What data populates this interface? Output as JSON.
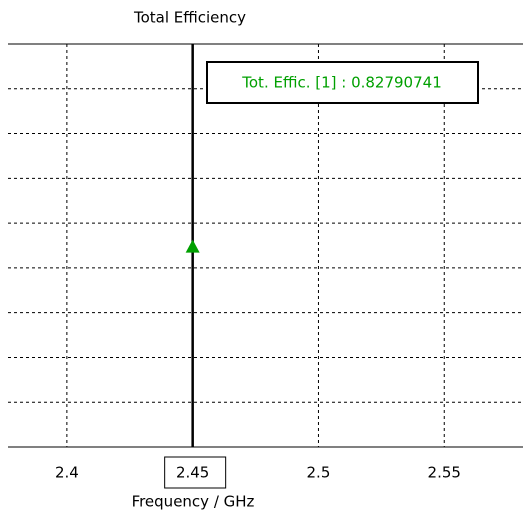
{
  "chart_data": {
    "type": "marker",
    "title": "Total Efficiency",
    "xlabel": "Frequency / GHz",
    "xlim": [
      2.3766,
      2.5813
    ],
    "xticks": [
      2.4,
      2.45,
      2.5,
      2.55
    ],
    "ylim": [
      0.819,
      0.837
    ],
    "yticks": [
      0.821,
      0.823,
      0.825,
      0.827,
      0.829,
      0.831,
      0.833,
      0.835
    ],
    "grid": true,
    "marker": {
      "x": 2.45,
      "value": 0.82790741,
      "label": "Tot. Effic. [1] : 0.82790741",
      "color": "#00a000"
    }
  }
}
